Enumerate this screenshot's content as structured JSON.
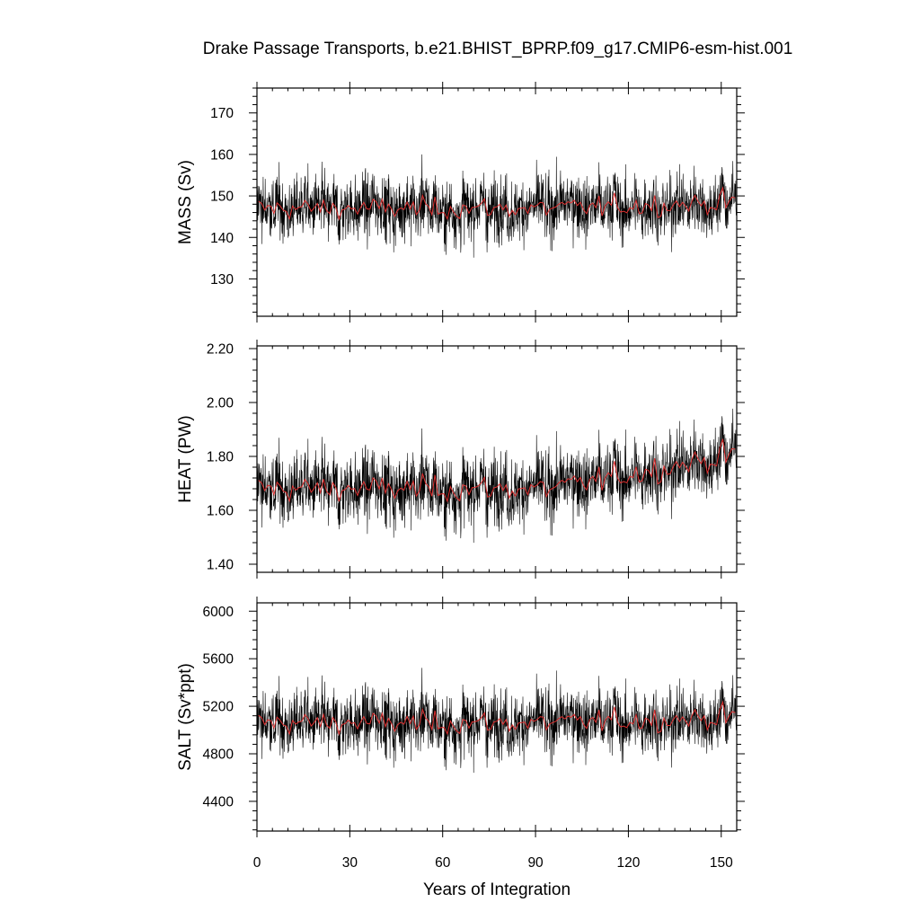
{
  "title": "Drake Passage Transports, b.e21.BHIST_BPRP.f09_g17.CMIP6-esm-hist.001",
  "colors": {
    "raw_series": "#000000",
    "smoothed_series": "#e03030",
    "frame": "#000000"
  },
  "chart_data": [
    {
      "type": "line",
      "ylabel": "MASS (Sv)",
      "xlabel": "",
      "xlim": [
        0,
        155
      ],
      "ylim": [
        121,
        176
      ],
      "yticks": [
        130,
        140,
        150,
        160,
        170
      ],
      "ytick_labels": [
        "130",
        "140",
        "150",
        "160",
        "170"
      ],
      "grid": false,
      "series": [
        {
          "kind": "monthly",
          "mean": 147,
          "amp": 6.5,
          "min": 121,
          "max": 176,
          "trend_end": 1.5
        },
        {
          "kind": "annual",
          "mean": 147,
          "amp": 2.2
        }
      ]
    },
    {
      "type": "line",
      "ylabel": "HEAT (PW)",
      "xlabel": "",
      "xlim": [
        0,
        155
      ],
      "ylim": [
        1.37,
        2.21
      ],
      "yticks": [
        1.4,
        1.6,
        1.8,
        2.0,
        2.2
      ],
      "ytick_labels": [
        "1.40",
        "1.60",
        "1.80",
        "2.00",
        "2.20"
      ],
      "grid": false,
      "series": [
        {
          "kind": "monthly",
          "mean": 1.68,
          "amp": 0.11,
          "min": 1.38,
          "max": 2.21,
          "trend_end": 0.13
        },
        {
          "kind": "annual",
          "mean": 1.68,
          "amp": 0.04
        }
      ]
    },
    {
      "type": "line",
      "ylabel": "SALT (Sv*ppt)",
      "xlabel": "Years of Integration",
      "xlim": [
        0,
        155
      ],
      "ylim": [
        4150,
        6070
      ],
      "yticks": [
        4400,
        4800,
        5200,
        5600,
        6000
      ],
      "ytick_labels": [
        "4400",
        "4800",
        "5200",
        "5600",
        "6000"
      ],
      "xticks": [
        0,
        30,
        60,
        90,
        120,
        150
      ],
      "xtick_labels": [
        "0",
        "30",
        "60",
        "90",
        "120",
        "150"
      ],
      "grid": false,
      "series": [
        {
          "kind": "monthly",
          "mean": 5060,
          "amp": 230,
          "min": 4150,
          "max": 6070,
          "trend_end": 50
        },
        {
          "kind": "annual",
          "mean": 5060,
          "amp": 80
        }
      ]
    }
  ]
}
